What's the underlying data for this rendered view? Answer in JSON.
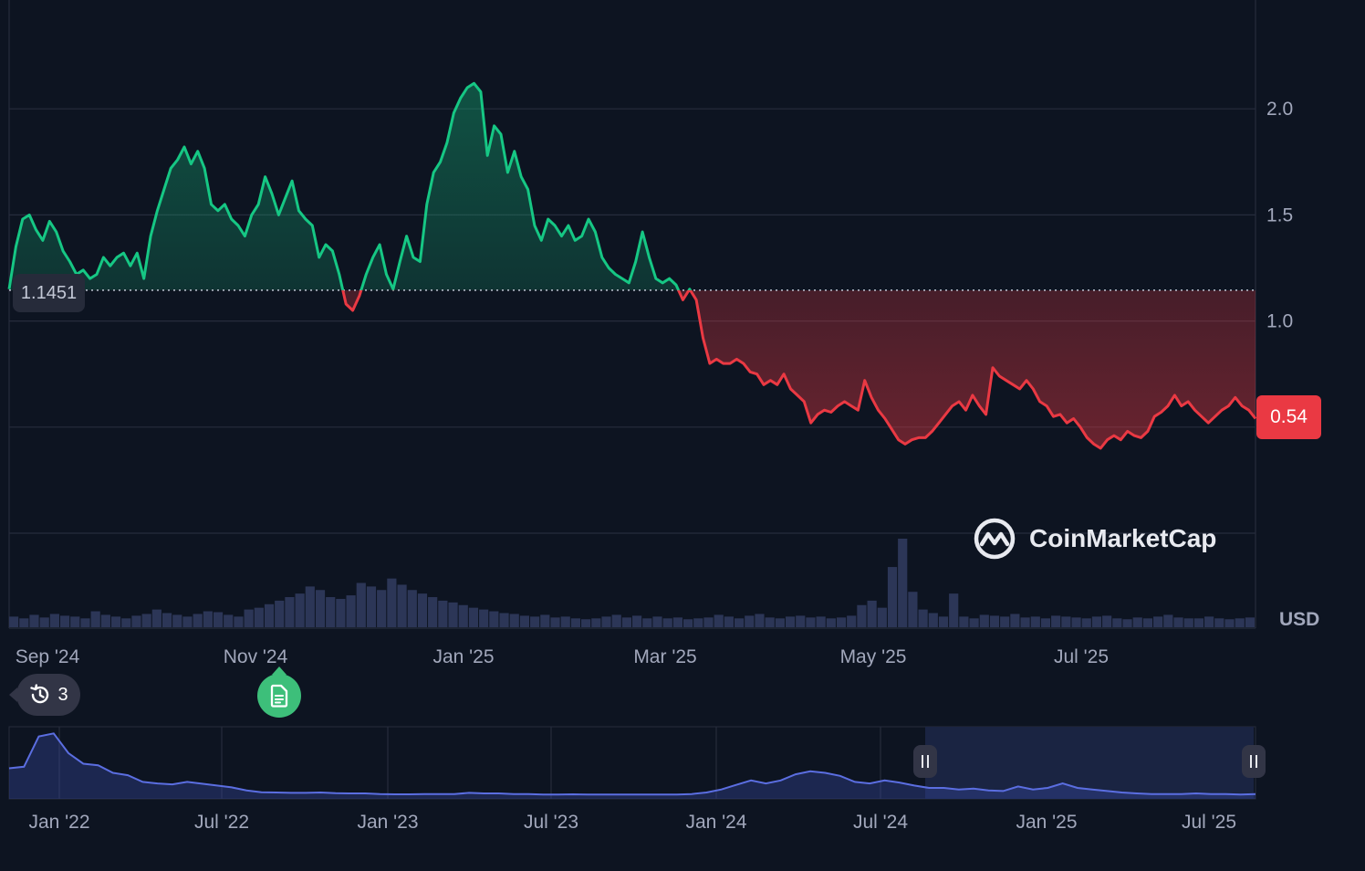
{
  "chart_data": [
    {
      "type": "area",
      "x_labels": [
        "Sep '24",
        "Nov '24",
        "Jan '25",
        "Mar '25",
        "May '25",
        "Jul '25"
      ],
      "y_ticks": [
        1.0,
        1.5,
        2.0
      ],
      "ylim": [
        0.0,
        2.5
      ],
      "unit": "USD",
      "reference_line": 1.1451,
      "reference_label": "1.1451",
      "current_price_label": "0.54",
      "above_color": "#16c784",
      "below_color": "#ea3943",
      "grid": true,
      "series": [
        {
          "values": [
            1.15,
            1.35,
            1.48,
            1.5,
            1.43,
            1.38,
            1.47,
            1.42,
            1.33,
            1.28,
            1.22,
            1.24,
            1.2,
            1.22,
            1.3,
            1.26,
            1.3,
            1.32,
            1.26,
            1.32,
            1.2,
            1.4,
            1.52,
            1.62,
            1.72,
            1.76,
            1.82,
            1.74,
            1.8,
            1.72,
            1.55,
            1.52,
            1.55,
            1.48,
            1.45,
            1.4,
            1.5,
            1.55,
            1.68,
            1.6,
            1.5,
            1.58,
            1.66,
            1.52,
            1.48,
            1.45,
            1.3,
            1.36,
            1.33,
            1.22,
            1.08,
            1.05,
            1.12,
            1.22,
            1.3,
            1.36,
            1.22,
            1.15,
            1.28,
            1.4,
            1.3,
            1.28,
            1.55,
            1.7,
            1.75,
            1.84,
            1.98,
            2.05,
            2.1,
            2.12,
            2.08,
            1.78,
            1.92,
            1.88,
            1.7,
            1.8,
            1.68,
            1.62,
            1.45,
            1.38,
            1.48,
            1.45,
            1.4,
            1.45,
            1.38,
            1.4,
            1.48,
            1.42,
            1.3,
            1.25,
            1.22,
            1.2,
            1.18,
            1.28,
            1.42,
            1.3,
            1.2,
            1.18,
            1.2,
            1.17,
            1.1,
            1.15,
            1.1,
            0.92,
            0.8,
            0.82,
            0.8,
            0.8,
            0.82,
            0.8,
            0.76,
            0.75,
            0.7,
            0.72,
            0.7,
            0.75,
            0.68,
            0.65,
            0.62,
            0.52,
            0.56,
            0.58,
            0.57,
            0.6,
            0.62,
            0.6,
            0.58,
            0.72,
            0.64,
            0.58,
            0.54,
            0.49,
            0.44,
            0.42,
            0.44,
            0.45,
            0.45,
            0.48,
            0.52,
            0.56,
            0.6,
            0.62,
            0.58,
            0.65,
            0.6,
            0.56,
            0.78,
            0.74,
            0.72,
            0.7,
            0.68,
            0.72,
            0.68,
            0.62,
            0.6,
            0.55,
            0.56,
            0.52,
            0.54,
            0.5,
            0.45,
            0.42,
            0.4,
            0.44,
            0.46,
            0.44,
            0.48,
            0.46,
            0.45,
            0.48,
            0.55,
            0.57,
            0.6,
            0.65,
            0.6,
            0.62,
            0.58,
            0.55,
            0.52,
            0.55,
            0.58,
            0.6,
            0.64,
            0.6,
            0.58,
            0.54
          ]
        }
      ],
      "volume": [
        0.12,
        0.1,
        0.14,
        0.11,
        0.15,
        0.13,
        0.12,
        0.1,
        0.18,
        0.14,
        0.12,
        0.1,
        0.13,
        0.15,
        0.2,
        0.16,
        0.14,
        0.12,
        0.15,
        0.18,
        0.17,
        0.14,
        0.12,
        0.2,
        0.22,
        0.26,
        0.3,
        0.34,
        0.38,
        0.46,
        0.42,
        0.34,
        0.32,
        0.36,
        0.5,
        0.46,
        0.42,
        0.55,
        0.48,
        0.42,
        0.38,
        0.34,
        0.3,
        0.28,
        0.25,
        0.22,
        0.2,
        0.18,
        0.16,
        0.15,
        0.13,
        0.12,
        0.14,
        0.11,
        0.12,
        0.1,
        0.09,
        0.1,
        0.12,
        0.14,
        0.11,
        0.13,
        0.1,
        0.12,
        0.1,
        0.11,
        0.09,
        0.1,
        0.11,
        0.14,
        0.12,
        0.1,
        0.13,
        0.15,
        0.11,
        0.1,
        0.12,
        0.13,
        0.11,
        0.12,
        0.1,
        0.11,
        0.13,
        0.25,
        0.3,
        0.22,
        0.68,
        1.0,
        0.4,
        0.2,
        0.16,
        0.12,
        0.38,
        0.12,
        0.1,
        0.14,
        0.13,
        0.12,
        0.15,
        0.11,
        0.12,
        0.1,
        0.13,
        0.12,
        0.11,
        0.1,
        0.12,
        0.13,
        0.1,
        0.09,
        0.11,
        0.1,
        0.12,
        0.14,
        0.11,
        0.1,
        0.1,
        0.12,
        0.1,
        0.09,
        0.1,
        0.11
      ]
    },
    {
      "type": "area",
      "role": "range-navigator",
      "x_labels": [
        "Jan '22",
        "Jul '22",
        "Jan '23",
        "Jul '23",
        "Jan '24",
        "Jul '24",
        "Jan '25",
        "Jul '25"
      ],
      "series": [
        {
          "values": [
            0.95,
            1.0,
            2.0,
            2.1,
            1.45,
            1.1,
            1.05,
            0.8,
            0.72,
            0.5,
            0.45,
            0.42,
            0.5,
            0.44,
            0.38,
            0.32,
            0.22,
            0.16,
            0.15,
            0.14,
            0.14,
            0.15,
            0.13,
            0.12,
            0.12,
            0.1,
            0.09,
            0.09,
            0.1,
            0.1,
            0.1,
            0.14,
            0.12,
            0.12,
            0.1,
            0.1,
            0.08,
            0.08,
            0.09,
            0.08,
            0.08,
            0.08,
            0.08,
            0.08,
            0.08,
            0.08,
            0.1,
            0.15,
            0.25,
            0.4,
            0.55,
            0.45,
            0.55,
            0.75,
            0.85,
            0.8,
            0.7,
            0.5,
            0.45,
            0.55,
            0.48,
            0.38,
            0.3,
            0.3,
            0.25,
            0.28,
            0.22,
            0.2,
            0.35,
            0.25,
            0.3,
            0.45,
            0.3,
            0.25,
            0.2,
            0.15,
            0.12,
            0.1,
            0.1,
            0.1,
            0.12,
            0.1,
            0.1,
            0.08,
            0.1
          ]
        }
      ],
      "selected_range": [
        "Aug '24",
        "Aug '25"
      ]
    }
  ],
  "events": {
    "count": "3"
  },
  "watermark": "CoinMarketCap"
}
